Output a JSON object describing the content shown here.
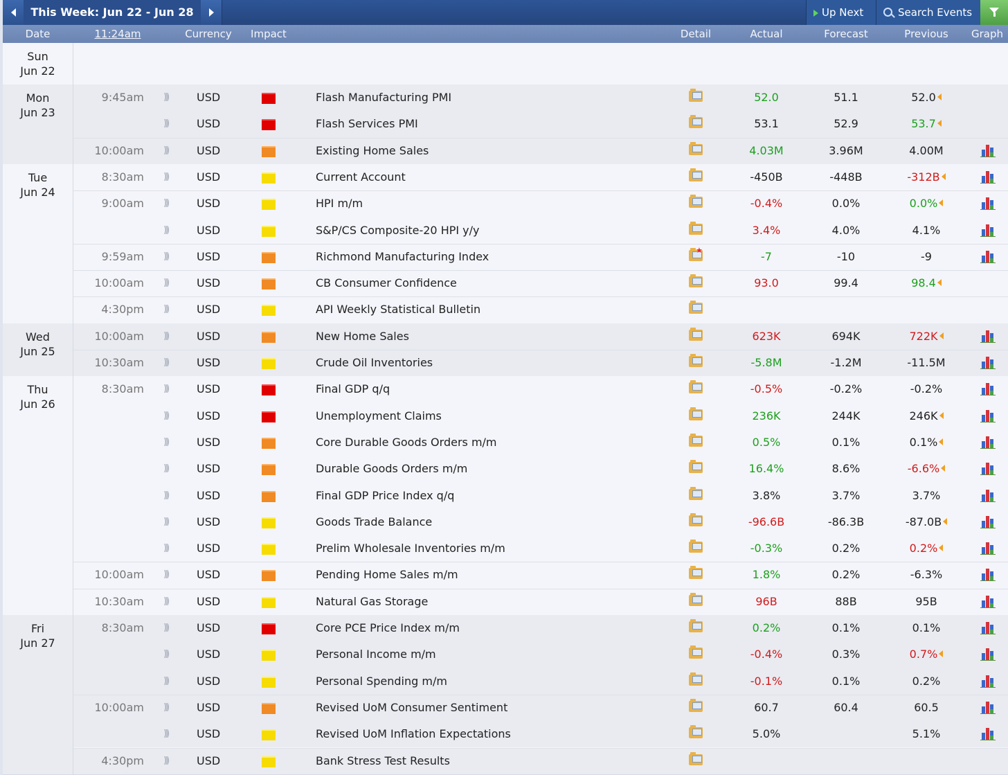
{
  "toolbar": {
    "week_title": "This Week: Jun 22 - Jun 28",
    "up_next": "Up Next",
    "search_events": "Search Events"
  },
  "header": {
    "date": "Date",
    "clock": "11:24am",
    "currency": "Currency",
    "impact": "Impact",
    "detail": "Detail",
    "actual": "Actual",
    "forecast": "Forecast",
    "previous": "Previous",
    "graph": "Graph"
  },
  "colors": {
    "better": "#1ca01c",
    "worse": "#d11b1b",
    "high_impact": "#e00000",
    "medium_impact": "#f08a24",
    "low_impact": "#f6dc00"
  },
  "days": [
    {
      "dow": "Sun",
      "date": "Jun 22"
    },
    {
      "dow": "Mon",
      "date": "Jun 23"
    },
    {
      "dow": "Tue",
      "date": "Jun 24"
    },
    {
      "dow": "Wed",
      "date": "Jun 25"
    },
    {
      "dow": "Thu",
      "date": "Jun 26"
    },
    {
      "dow": "Fri",
      "date": "Jun 27"
    }
  ],
  "events": [
    {
      "time": "9:45am",
      "currency": "USD",
      "impact": "red",
      "name": "Flash Manufacturing PMI",
      "actual": "52.0",
      "actual_color": "g",
      "forecast": "51.1",
      "previous": "52.0",
      "previous_color": "k",
      "revised": true,
      "graph": false
    },
    {
      "time": "",
      "currency": "USD",
      "impact": "red",
      "name": "Flash Services PMI",
      "actual": "53.1",
      "actual_color": "k",
      "forecast": "52.9",
      "previous": "53.7",
      "previous_color": "g",
      "revised": true,
      "graph": false
    },
    {
      "time": "10:00am",
      "currency": "USD",
      "impact": "orange",
      "name": "Existing Home Sales",
      "actual": "4.03M",
      "actual_color": "g",
      "forecast": "3.96M",
      "previous": "4.00M",
      "previous_color": "k",
      "revised": false,
      "graph": true
    },
    {
      "time": "8:30am",
      "currency": "USD",
      "impact": "yellow",
      "name": "Current Account",
      "actual": "-450B",
      "actual_color": "k",
      "forecast": "-448B",
      "previous": "-312B",
      "previous_color": "r",
      "revised": true,
      "graph": true
    },
    {
      "time": "9:00am",
      "currency": "USD",
      "impact": "yellow",
      "name": "HPI m/m",
      "actual": "-0.4%",
      "actual_color": "r",
      "forecast": "0.0%",
      "previous": "0.0%",
      "previous_color": "g",
      "revised": true,
      "graph": true
    },
    {
      "time": "",
      "currency": "USD",
      "impact": "yellow",
      "name": "S&P/CS Composite-20 HPI y/y",
      "actual": "3.4%",
      "actual_color": "r",
      "forecast": "4.0%",
      "previous": "4.1%",
      "previous_color": "k",
      "revised": false,
      "graph": true
    },
    {
      "time": "9:59am",
      "currency": "USD",
      "impact": "orange",
      "name": "Richmond Manufacturing Index",
      "actual": "-7",
      "actual_color": "g",
      "forecast": "-10",
      "previous": "-9",
      "previous_color": "k",
      "revised": false,
      "graph": true,
      "star": true
    },
    {
      "time": "10:00am",
      "currency": "USD",
      "impact": "orange",
      "name": "CB Consumer Confidence",
      "actual": "93.0",
      "actual_color": "r",
      "forecast": "99.4",
      "previous": "98.4",
      "previous_color": "g",
      "revised": true,
      "graph": false
    },
    {
      "time": "4:30pm",
      "currency": "USD",
      "impact": "yellow",
      "name": "API Weekly Statistical Bulletin",
      "actual": "",
      "actual_color": "k",
      "forecast": "",
      "previous": "",
      "previous_color": "k",
      "revised": false,
      "graph": false
    },
    {
      "time": "10:00am",
      "currency": "USD",
      "impact": "orange",
      "name": "New Home Sales",
      "actual": "623K",
      "actual_color": "r",
      "forecast": "694K",
      "previous": "722K",
      "previous_color": "r",
      "revised": true,
      "graph": true
    },
    {
      "time": "10:30am",
      "currency": "USD",
      "impact": "yellow",
      "name": "Crude Oil Inventories",
      "actual": "-5.8M",
      "actual_color": "g",
      "forecast": "-1.2M",
      "previous": "-11.5M",
      "previous_color": "k",
      "revised": false,
      "graph": true
    },
    {
      "time": "8:30am",
      "currency": "USD",
      "impact": "red",
      "name": "Final GDP q/q",
      "actual": "-0.5%",
      "actual_color": "r",
      "forecast": "-0.2%",
      "previous": "-0.2%",
      "previous_color": "k",
      "revised": false,
      "graph": true
    },
    {
      "time": "",
      "currency": "USD",
      "impact": "red",
      "name": "Unemployment Claims",
      "actual": "236K",
      "actual_color": "g",
      "forecast": "244K",
      "previous": "246K",
      "previous_color": "k",
      "revised": true,
      "graph": true
    },
    {
      "time": "",
      "currency": "USD",
      "impact": "orange",
      "name": "Core Durable Goods Orders m/m",
      "actual": "0.5%",
      "actual_color": "g",
      "forecast": "0.1%",
      "previous": "0.1%",
      "previous_color": "k",
      "revised": true,
      "graph": true
    },
    {
      "time": "",
      "currency": "USD",
      "impact": "orange",
      "name": "Durable Goods Orders m/m",
      "actual": "16.4%",
      "actual_color": "g",
      "forecast": "8.6%",
      "previous": "-6.6%",
      "previous_color": "r",
      "revised": true,
      "graph": true
    },
    {
      "time": "",
      "currency": "USD",
      "impact": "orange",
      "name": "Final GDP Price Index q/q",
      "actual": "3.8%",
      "actual_color": "k",
      "forecast": "3.7%",
      "previous": "3.7%",
      "previous_color": "k",
      "revised": false,
      "graph": true
    },
    {
      "time": "",
      "currency": "USD",
      "impact": "yellow",
      "name": "Goods Trade Balance",
      "actual": "-96.6B",
      "actual_color": "r",
      "forecast": "-86.3B",
      "previous": "-87.0B",
      "previous_color": "k",
      "revised": true,
      "graph": true
    },
    {
      "time": "",
      "currency": "USD",
      "impact": "yellow",
      "name": "Prelim Wholesale Inventories m/m",
      "actual": "-0.3%",
      "actual_color": "g",
      "forecast": "0.2%",
      "previous": "0.2%",
      "previous_color": "r",
      "revised": true,
      "graph": true
    },
    {
      "time": "10:00am",
      "currency": "USD",
      "impact": "orange",
      "name": "Pending Home Sales m/m",
      "actual": "1.8%",
      "actual_color": "g",
      "forecast": "0.2%",
      "previous": "-6.3%",
      "previous_color": "k",
      "revised": false,
      "graph": true
    },
    {
      "time": "10:30am",
      "currency": "USD",
      "impact": "yellow",
      "name": "Natural Gas Storage",
      "actual": "96B",
      "actual_color": "r",
      "forecast": "88B",
      "previous": "95B",
      "previous_color": "k",
      "revised": false,
      "graph": true
    },
    {
      "time": "8:30am",
      "currency": "USD",
      "impact": "red",
      "name": "Core PCE Price Index m/m",
      "actual": "0.2%",
      "actual_color": "g",
      "forecast": "0.1%",
      "previous": "0.1%",
      "previous_color": "k",
      "revised": false,
      "graph": true
    },
    {
      "time": "",
      "currency": "USD",
      "impact": "yellow",
      "name": "Personal Income m/m",
      "actual": "-0.4%",
      "actual_color": "r",
      "forecast": "0.3%",
      "previous": "0.7%",
      "previous_color": "r",
      "revised": true,
      "graph": true
    },
    {
      "time": "",
      "currency": "USD",
      "impact": "yellow",
      "name": "Personal Spending m/m",
      "actual": "-0.1%",
      "actual_color": "r",
      "forecast": "0.1%",
      "previous": "0.2%",
      "previous_color": "k",
      "revised": false,
      "graph": true
    },
    {
      "time": "10:00am",
      "currency": "USD",
      "impact": "orange",
      "name": "Revised UoM Consumer Sentiment",
      "actual": "60.7",
      "actual_color": "k",
      "forecast": "60.4",
      "previous": "60.5",
      "previous_color": "k",
      "revised": false,
      "graph": true
    },
    {
      "time": "",
      "currency": "USD",
      "impact": "yellow",
      "name": "Revised UoM Inflation Expectations",
      "actual": "5.0%",
      "actual_color": "k",
      "forecast": "",
      "previous": "5.1%",
      "previous_color": "k",
      "revised": false,
      "graph": true
    },
    {
      "time": "4:30pm",
      "currency": "USD",
      "impact": "yellow",
      "name": "Bank Stress Test Results",
      "actual": "",
      "actual_color": "k",
      "forecast": "",
      "previous": "",
      "previous_color": "k",
      "revised": false,
      "graph": false
    }
  ]
}
